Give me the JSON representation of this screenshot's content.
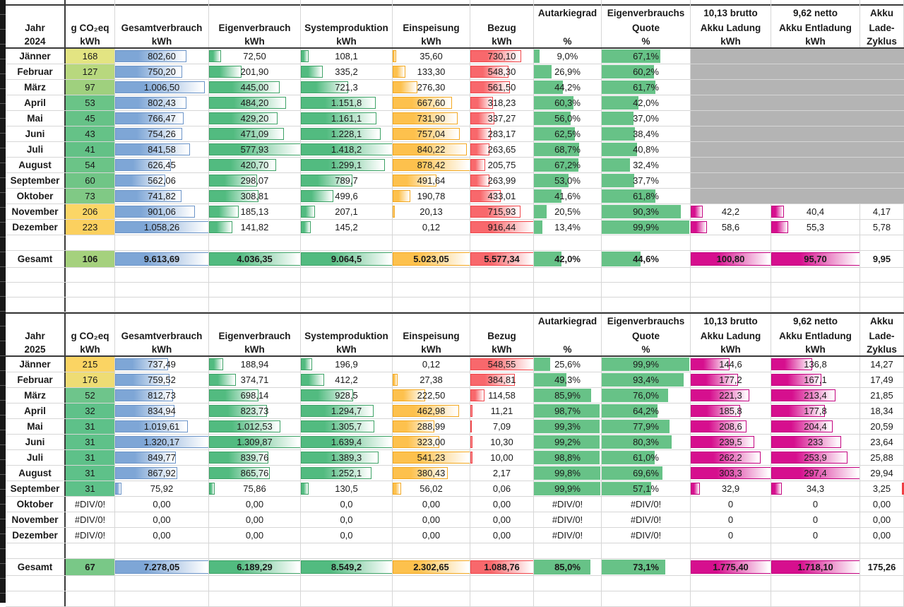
{
  "sheet": {
    "colors": {
      "bar_blue": "#7ea6d6",
      "bar_blue_border": "#6b94c8",
      "bar_green": "#52bb80",
      "bar_green_border": "#3da266",
      "bar_orange": "#fdc14d",
      "bar_orange_border": "#f3a821",
      "bar_red": "#f8686c",
      "bar_red_border": "#f04549",
      "bar_magenta": "#d60f8e",
      "bar_magenta_border": "#c3007f",
      "bar_solid_green": "#67c287",
      "battery_gray": "#b4b4b4",
      "sliver_red": "#ee3f44"
    },
    "tables": [
      {
        "year": "2024",
        "header_rows": [
          [
            "",
            "",
            "",
            "",
            "",
            "",
            "",
            "Autarkiegrad",
            "Eigenverbrauchs",
            "10,13 brutto",
            "9,62 netto",
            "Akku"
          ],
          [
            "Jahr",
            "g CO₂eq",
            "Gesamtverbrauch",
            "Eigenverbrauch",
            "Systemproduktion",
            "Einspeisung",
            "Bezug",
            "",
            "Quote",
            "Akku Ladung",
            "Akku Entladung",
            "Lade-"
          ],
          [
            "2024",
            "kWh",
            "kWh",
            "kWh",
            "kWh",
            "kWh",
            "kWh",
            "%",
            "%",
            "kWh",
            "kWh",
            "Zyklus"
          ]
        ],
        "months": [
          {
            "label": "Jänner",
            "co2": "168",
            "co2_bg": "#e3e482",
            "verbrauch": "802,60",
            "eigen": "72,50",
            "produktion": "108,1",
            "einspeisung": "35,60",
            "bezug": "730,10",
            "autarkie": "9,0%",
            "quote": "67,1%",
            "ladung": "",
            "entladung": "",
            "zyklus": "",
            "battery_gray": true
          },
          {
            "label": "Februar",
            "co2": "127",
            "co2_bg": "#b8d87e",
            "verbrauch": "750,20",
            "eigen": "201,90",
            "produktion": "335,2",
            "einspeisung": "133,30",
            "bezug": "548,30",
            "autarkie": "26,9%",
            "quote": "60,2%",
            "ladung": "",
            "entladung": "",
            "zyklus": "",
            "battery_gray": true
          },
          {
            "label": "März",
            "co2": "97",
            "co2_bg": "#9fd07e",
            "verbrauch": "1.006,50",
            "eigen": "445,00",
            "produktion": "721,3",
            "einspeisung": "276,30",
            "bezug": "561,50",
            "autarkie": "44,2%",
            "quote": "61,7%",
            "ladung": "",
            "entladung": "",
            "zyklus": "",
            "battery_gray": true
          },
          {
            "label": "April",
            "co2": "53",
            "co2_bg": "#6ac487",
            "verbrauch": "802,43",
            "eigen": "484,20",
            "produktion": "1.151,8",
            "einspeisung": "667,60",
            "bezug": "318,23",
            "autarkie": "60,3%",
            "quote": "42,0%",
            "ladung": "",
            "entladung": "",
            "zyklus": "",
            "battery_gray": true
          },
          {
            "label": "Mai",
            "co2": "45",
            "co2_bg": "#66c287",
            "verbrauch": "766,47",
            "eigen": "429,20",
            "produktion": "1.161,1",
            "einspeisung": "731,90",
            "bezug": "337,27",
            "autarkie": "56,0%",
            "quote": "37,0%",
            "ladung": "",
            "entladung": "",
            "zyklus": "",
            "battery_gray": true
          },
          {
            "label": "Juni",
            "co2": "43",
            "co2_bg": "#65c287",
            "verbrauch": "754,26",
            "eigen": "471,09",
            "produktion": "1.228,1",
            "einspeisung": "757,04",
            "bezug": "283,17",
            "autarkie": "62,5%",
            "quote": "38,4%",
            "ladung": "",
            "entladung": "",
            "zyklus": "",
            "battery_gray": true
          },
          {
            "label": "Juli",
            "co2": "41",
            "co2_bg": "#63c186",
            "verbrauch": "841,58",
            "eigen": "577,93",
            "produktion": "1.418,2",
            "einspeisung": "840,22",
            "bezug": "263,65",
            "autarkie": "68,7%",
            "quote": "40,8%",
            "ladung": "",
            "entladung": "",
            "zyklus": "",
            "battery_gray": true
          },
          {
            "label": "August",
            "co2": "54",
            "co2_bg": "#6bc487",
            "verbrauch": "626,45",
            "eigen": "420,70",
            "produktion": "1.299,1",
            "einspeisung": "878,42",
            "bezug": "205,75",
            "autarkie": "67,2%",
            "quote": "32,4%",
            "ladung": "",
            "entladung": "",
            "zyklus": "",
            "battery_gray": true
          },
          {
            "label": "September",
            "co2": "60",
            "co2_bg": "#70c586",
            "verbrauch": "562,06",
            "eigen": "298,07",
            "produktion": "789,7",
            "einspeisung": "491,64",
            "bezug": "263,99",
            "autarkie": "53,0%",
            "quote": "37,7%",
            "ladung": "",
            "entladung": "",
            "zyklus": "",
            "battery_gray": true
          },
          {
            "label": "Oktober",
            "co2": "73",
            "co2_bg": "#80c985",
            "verbrauch": "741,82",
            "eigen": "308,81",
            "produktion": "499,6",
            "einspeisung": "190,78",
            "bezug": "433,01",
            "autarkie": "41,6%",
            "quote": "61,8%",
            "ladung": "",
            "entladung": "",
            "zyklus": "",
            "battery_gray": true
          },
          {
            "label": "November",
            "co2": "206",
            "co2_bg": "#fbd666",
            "verbrauch": "901,06",
            "eigen": "185,13",
            "produktion": "207,1",
            "einspeisung": "20,13",
            "bezug": "715,93",
            "autarkie": "20,5%",
            "quote": "90,3%",
            "ladung": "42,2",
            "entladung": "40,4",
            "zyklus": "4,17"
          },
          {
            "label": "Dezember",
            "co2": "223",
            "co2_bg": "#fbd05f",
            "verbrauch": "1.058,26",
            "eigen": "141,82",
            "produktion": "145,2",
            "einspeisung": "0,12",
            "bezug": "916,44",
            "autarkie": "13,4%",
            "quote": "99,9%",
            "ladung": "58,6",
            "entladung": "55,3",
            "zyklus": "5,78"
          }
        ],
        "gesamt": {
          "label": "Gesamt",
          "co2": "106",
          "co2_bg": "#a5d17d",
          "verbrauch": "9.613,69",
          "eigen": "4.036,35",
          "produktion": "9.064,5",
          "einspeisung": "5.023,05",
          "bezug": "5.577,34",
          "autarkie": "42,0%",
          "quote": "44,6%",
          "ladung": "100,80",
          "entladung": "95,70",
          "zyklus": "9,95"
        },
        "trailing_blank_rows": 3
      },
      {
        "year": "2025",
        "header_rows": [
          [
            "",
            "",
            "",
            "",
            "",
            "",
            "",
            "Autarkiegrad",
            "Eigenverbrauchs",
            "10,13 brutto",
            "9,62 netto",
            "Akku"
          ],
          [
            "Jahr",
            "g CO₂eq",
            "Gesamtverbrauch",
            "Eigenverbrauch",
            "Systemproduktion",
            "Einspeisung",
            "Bezug",
            "",
            "Quote",
            "Akku Ladung",
            "Akku Entladung",
            "Lade-"
          ],
          [
            "2025",
            "kWh",
            "kWh",
            "kWh",
            "kWh",
            "kWh",
            "kWh",
            "%",
            "%",
            "kWh",
            "kWh",
            "Zyklus"
          ]
        ],
        "months": [
          {
            "label": "Jänner",
            "co2": "215",
            "co2_bg": "#fbd463",
            "verbrauch": "737,49",
            "eigen": "188,94",
            "produktion": "196,9",
            "einspeisung": "0,12",
            "bezug": "548,55",
            "autarkie": "25,6%",
            "quote": "99,9%",
            "ladung": "144,6",
            "entladung": "136,8",
            "zyklus": "14,27"
          },
          {
            "label": "Februar",
            "co2": "176",
            "co2_bg": "#eedc74",
            "verbrauch": "759,52",
            "eigen": "374,71",
            "produktion": "412,2",
            "einspeisung": "27,38",
            "bezug": "384,81",
            "autarkie": "49,3%",
            "quote": "93,4%",
            "ladung": "177,2",
            "entladung": "167,1",
            "zyklus": "17,49"
          },
          {
            "label": "März",
            "co2": "52",
            "co2_bg": "#6ec58b",
            "verbrauch": "812,73",
            "eigen": "698,14",
            "produktion": "928,5",
            "einspeisung": "222,50",
            "bezug": "114,58",
            "autarkie": "85,9%",
            "quote": "76,0%",
            "ladung": "221,3",
            "entladung": "213,4",
            "zyklus": "21,85"
          },
          {
            "label": "April",
            "co2": "32",
            "co2_bg": "#5fc189",
            "verbrauch": "834,94",
            "eigen": "823,73",
            "produktion": "1.294,7",
            "einspeisung": "462,98",
            "bezug": "11,21",
            "autarkie": "98,7%",
            "quote": "64,2%",
            "ladung": "185,8",
            "entladung": "177,8",
            "zyklus": "18,34"
          },
          {
            "label": "Mai",
            "co2": "31",
            "co2_bg": "#5ec189",
            "verbrauch": "1.019,61",
            "eigen": "1.012,53",
            "produktion": "1.305,7",
            "einspeisung": "288,99",
            "bezug": "7,09",
            "autarkie": "99,3%",
            "quote": "77,9%",
            "ladung": "208,6",
            "entladung": "204,4",
            "zyklus": "20,59"
          },
          {
            "label": "Juni",
            "co2": "31",
            "co2_bg": "#5ec189",
            "verbrauch": "1.320,17",
            "eigen": "1.309,87",
            "produktion": "1.639,4",
            "einspeisung": "323,00",
            "bezug": "10,30",
            "autarkie": "99,2%",
            "quote": "80,3%",
            "ladung": "239,5",
            "entladung": "233",
            "zyklus": "23,64"
          },
          {
            "label": "Juli",
            "co2": "31",
            "co2_bg": "#5ec189",
            "verbrauch": "849,77",
            "eigen": "839,76",
            "produktion": "1.389,3",
            "einspeisung": "541,23",
            "bezug": "10,00",
            "autarkie": "98,8%",
            "quote": "61,0%",
            "ladung": "262,2",
            "entladung": "253,9",
            "zyklus": "25,88"
          },
          {
            "label": "August",
            "co2": "31",
            "co2_bg": "#5ec189",
            "verbrauch": "867,92",
            "eigen": "865,76",
            "produktion": "1.252,1",
            "einspeisung": "380,43",
            "bezug": "2,17",
            "autarkie": "99,8%",
            "quote": "69,6%",
            "ladung": "303,3",
            "entladung": "297,4",
            "zyklus": "29,94"
          },
          {
            "label": "September",
            "co2": "31",
            "co2_bg": "#5ec189",
            "verbrauch": "75,92",
            "eigen": "75,86",
            "produktion": "130,5",
            "einspeisung": "56,02",
            "bezug": "0,06",
            "autarkie": "99,9%",
            "quote": "57,1%",
            "ladung": "32,9",
            "entladung": "34,3",
            "zyklus": "3,25",
            "right_edge_sliver": true
          },
          {
            "label": "Oktober",
            "co2": "#DIV/0!",
            "co2_bg": "",
            "verbrauch": "0,00",
            "eigen": "0,00",
            "produktion": "0,0",
            "einspeisung": "0,00",
            "bezug": "0,00",
            "autarkie": "#DIV/0!",
            "quote": "#DIV/0!",
            "ladung": "0",
            "entladung": "0",
            "zyklus": "0,00"
          },
          {
            "label": "November",
            "co2": "#DIV/0!",
            "co2_bg": "",
            "verbrauch": "0,00",
            "eigen": "0,00",
            "produktion": "0,0",
            "einspeisung": "0,00",
            "bezug": "0,00",
            "autarkie": "#DIV/0!",
            "quote": "#DIV/0!",
            "ladung": "0",
            "entladung": "0",
            "zyklus": "0,00"
          },
          {
            "label": "Dezember",
            "co2": "#DIV/0!",
            "co2_bg": "",
            "verbrauch": "0,00",
            "eigen": "0,00",
            "produktion": "0,0",
            "einspeisung": "0,00",
            "bezug": "0,00",
            "autarkie": "#DIV/0!",
            "quote": "#DIV/0!",
            "ladung": "0",
            "entladung": "0",
            "zyklus": "0,00"
          }
        ],
        "gesamt": {
          "label": "Gesamt",
          "co2": "67",
          "co2_bg": "#79c887",
          "verbrauch": "7.278,05",
          "eigen": "6.189,29",
          "produktion": "8.549,2",
          "einspeisung": "2.302,65",
          "bezug": "1.088,76",
          "autarkie": "85,0%",
          "quote": "73,1%",
          "ladung": "1.775,40",
          "entladung": "1.718,10",
          "zyklus": "175,26"
        },
        "trailing_blank_rows": 2
      }
    ]
  }
}
